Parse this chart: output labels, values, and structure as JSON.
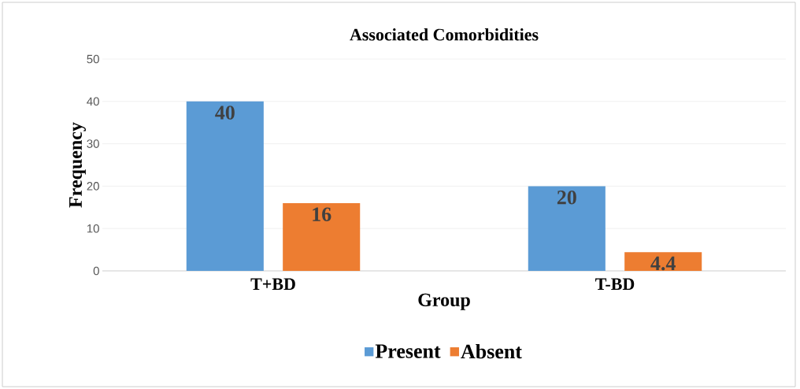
{
  "chart_data": {
    "type": "bar",
    "title": "Associated Comorbidities",
    "xlabel": "Group",
    "ylabel": "Frequency",
    "categories": [
      "T+BD",
      "T-BD"
    ],
    "series": [
      {
        "name": "Present",
        "color": "#5b9bd5",
        "values": [
          40,
          20
        ]
      },
      {
        "name": "Absent",
        "color": "#ed7d31",
        "values": [
          16,
          4.4
        ]
      }
    ],
    "ylim": [
      0,
      50
    ],
    "yticks": [
      0,
      10,
      20,
      30,
      40,
      50
    ],
    "grid": "y",
    "legend": "bottom",
    "data_labels": true
  }
}
